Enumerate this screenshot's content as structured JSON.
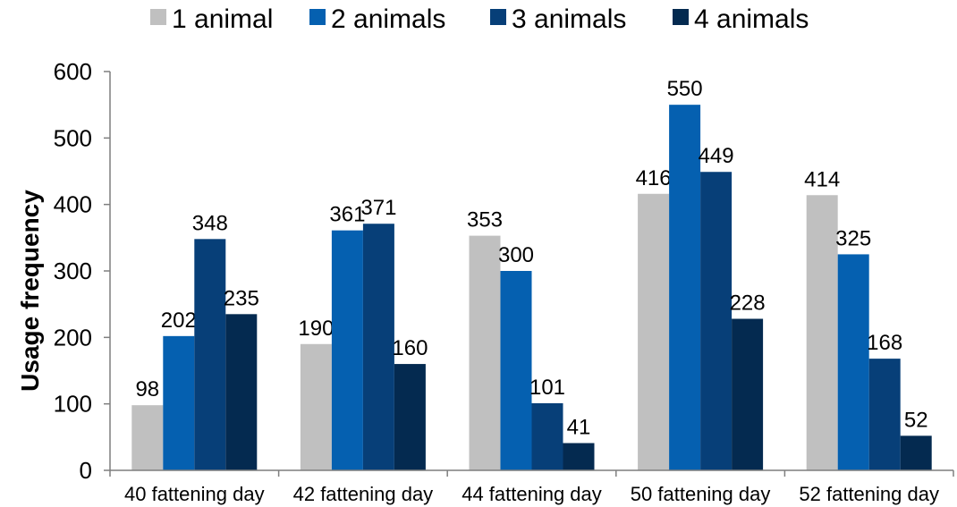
{
  "chart_data": {
    "type": "bar",
    "title": "",
    "xlabel": "",
    "ylabel": "Usage frequency",
    "ylim": [
      0,
      600
    ],
    "yticks": [
      0,
      100,
      200,
      300,
      400,
      500,
      600
    ],
    "grid": false,
    "legend_position": "top",
    "categories": [
      "40 fattening day",
      "42 fattening day",
      "44 fattening day",
      "50 fattening day",
      "52 fattening day"
    ],
    "series": [
      {
        "name": "1 animal",
        "color": "#c0c0c0",
        "values": [
          98,
          190,
          353,
          416,
          414
        ]
      },
      {
        "name": "2 animals",
        "color": "#0560b0",
        "values": [
          202,
          361,
          300,
          550,
          325
        ]
      },
      {
        "name": "3 animals",
        "color": "#073f78",
        "values": [
          348,
          371,
          101,
          449,
          168
        ]
      },
      {
        "name": "4 animals",
        "color": "#042a50",
        "values": [
          235,
          160,
          41,
          228,
          52
        ]
      }
    ]
  }
}
